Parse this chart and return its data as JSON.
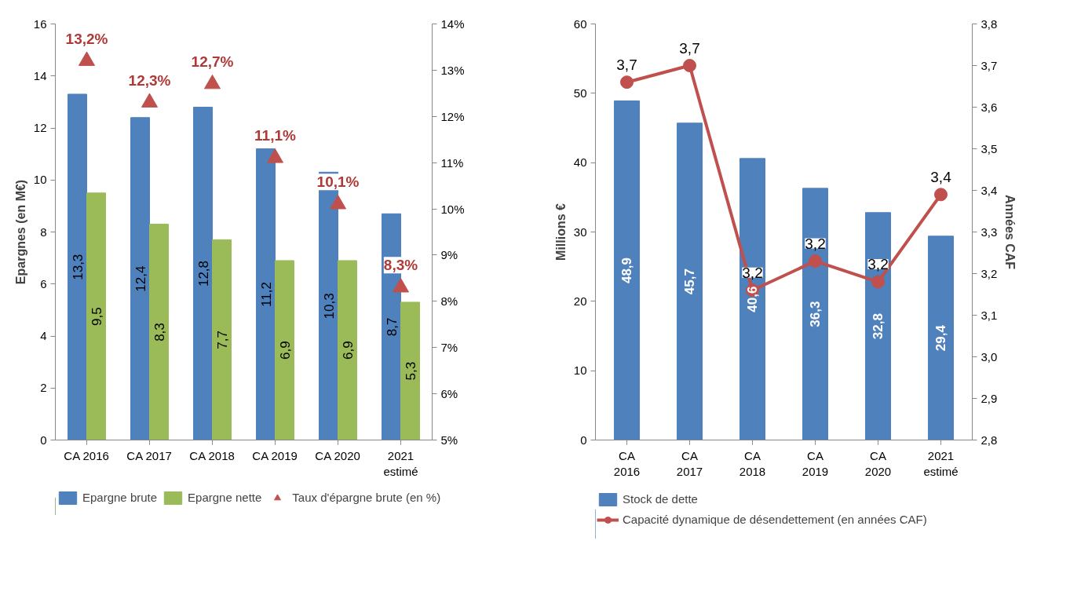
{
  "chart_data": [
    {
      "type": "bar",
      "ylabel": "Epargnes (en M€)",
      "categories": [
        "CA 2016",
        "CA 2017",
        "CA 2018",
        "CA 2019",
        "CA 2020",
        "2021 estimé"
      ],
      "ylim": [
        0,
        16
      ],
      "yticks": [
        0,
        2,
        4,
        6,
        8,
        10,
        12,
        14,
        16
      ],
      "y2lim": [
        5,
        14
      ],
      "y2ticks": [
        {
          "value": 5,
          "label": "5%"
        },
        {
          "value": 6,
          "label": "6%"
        },
        {
          "value": 7,
          "label": "7%"
        },
        {
          "value": 8,
          "label": "8%"
        },
        {
          "value": 9,
          "label": "9%"
        },
        {
          "value": 10,
          "label": "10%"
        },
        {
          "value": 11,
          "label": "11%"
        },
        {
          "value": 12,
          "label": "12%"
        },
        {
          "value": 13,
          "label": "13%"
        },
        {
          "value": 14,
          "label": "14%"
        }
      ],
      "legend": "bottom",
      "grid": false,
      "series": [
        {
          "name": "Epargne brute",
          "color": "#4f81bd",
          "values": [
            13.3,
            12.4,
            12.8,
            11.2,
            10.3,
            8.7
          ],
          "value_labels": [
            "13,3",
            "12,4",
            "12,8",
            "11,2",
            "10,3",
            "8,7"
          ]
        },
        {
          "name": "Epargne nette",
          "color": "#9bbb59",
          "values": [
            9.5,
            8.3,
            7.7,
            6.9,
            6.9,
            5.3
          ],
          "value_labels": [
            "9,5",
            "8,3",
            "7,7",
            "6,9",
            "6,9",
            "5,3"
          ]
        },
        {
          "name": "Taux d'épargne brute (en %)",
          "type": "scatter",
          "marker": "triangle",
          "axis": "y2",
          "color": "#c0504d",
          "values": [
            13.2,
            12.3,
            12.7,
            11.1,
            10.1,
            8.3
          ],
          "value_labels": [
            "13,2%",
            "12,3%",
            "12,7%",
            "11,1%",
            "10,1%",
            "8,3%"
          ]
        }
      ]
    },
    {
      "type": "bar",
      "ylabel": "Millions €",
      "y2label": "Années CAF",
      "categories": [
        "CA 2016",
        "CA 2017",
        "CA 2018",
        "CA 2019",
        "CA 2020",
        "2021 estimé"
      ],
      "ylim": [
        0,
        60
      ],
      "yticks": [
        0,
        10,
        20,
        30,
        40,
        50,
        60
      ],
      "y2lim": [
        2.8,
        3.8
      ],
      "y2ticks": [
        {
          "value": 2.8,
          "label": "2,8"
        },
        {
          "value": 2.9,
          "label": "2,9"
        },
        {
          "value": 3.0,
          "label": "3,0"
        },
        {
          "value": 3.1,
          "label": "3,1"
        },
        {
          "value": 3.2,
          "label": "3,2"
        },
        {
          "value": 3.3,
          "label": "3,3"
        },
        {
          "value": 3.4,
          "label": "3,4"
        },
        {
          "value": 3.5,
          "label": "3,5"
        },
        {
          "value": 3.6,
          "label": "3,6"
        },
        {
          "value": 3.7,
          "label": "3,7"
        },
        {
          "value": 3.8,
          "label": "3,8"
        }
      ],
      "legend": "bottom",
      "grid": false,
      "series": [
        {
          "name": "Stock de dette",
          "color": "#4f81bd",
          "values": [
            48.9,
            45.7,
            40.6,
            36.3,
            32.8,
            29.4
          ],
          "value_labels": [
            "48,9",
            "45,7",
            "40,6",
            "36,3",
            "32,8",
            "29,4"
          ]
        },
        {
          "name": "Capacité dynamique de désendettement (en années CAF)",
          "type": "line",
          "marker": "circle",
          "axis": "y2",
          "color": "#c0504d",
          "values": [
            3.66,
            3.7,
            3.16,
            3.23,
            3.18,
            3.39
          ],
          "value_labels": [
            "3,7",
            "3,7",
            "3,2",
            "3,2",
            "3,2",
            "3,4"
          ]
        }
      ]
    }
  ]
}
